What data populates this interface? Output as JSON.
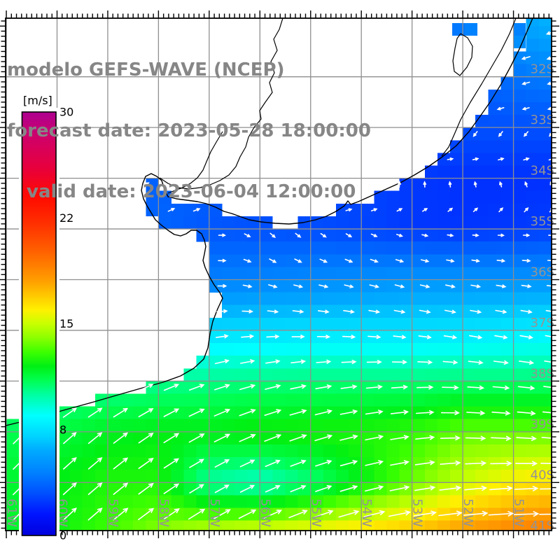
{
  "title": {
    "line1": "modelo GEFS-WAVE (NCEP)",
    "line2": "forecast date: 2023-05-28 18:00:00",
    "line3": "valid date: 2023-06-04 12:00:00",
    "color": "#868686"
  },
  "colorbar": {
    "unit_label": "[m/s]",
    "min": 0,
    "max": 30,
    "ticks": [
      {
        "value": 30,
        "label": "30"
      },
      {
        "value": 22.5,
        "label": "22"
      },
      {
        "value": 15,
        "label": "15"
      },
      {
        "value": 7.5,
        "label": "8"
      },
      {
        "value": 0,
        "label": "0"
      }
    ],
    "stops": [
      [
        0,
        "#0000DC"
      ],
      [
        1.5,
        "#0014FF"
      ],
      [
        3,
        "#0050FF"
      ],
      [
        4.5,
        "#0082FF"
      ],
      [
        6,
        "#00AAFF"
      ],
      [
        7,
        "#00D2FF"
      ],
      [
        8.5,
        "#00FFFF"
      ],
      [
        10,
        "#00FFA0"
      ],
      [
        11,
        "#00FF50"
      ],
      [
        12,
        "#00F014"
      ],
      [
        13,
        "#3CFF00"
      ],
      [
        14,
        "#8CFF00"
      ],
      [
        15,
        "#C8FF00"
      ],
      [
        16,
        "#FFF000"
      ],
      [
        17,
        "#FFC800"
      ],
      [
        18,
        "#FFA000"
      ],
      [
        19,
        "#FF8200"
      ],
      [
        20,
        "#FF6400"
      ],
      [
        22,
        "#FF3200"
      ],
      [
        24,
        "#FF0A00"
      ],
      [
        26,
        "#E8003C"
      ],
      [
        28,
        "#D20064"
      ],
      [
        30,
        "#AE0090"
      ]
    ]
  },
  "axes": {
    "lat_ticklabels": [
      "32S",
      "33S",
      "34S",
      "35S",
      "36S",
      "37S",
      "38S",
      "39S",
      "40S",
      "41S"
    ],
    "lat_values": [
      32,
      33,
      34,
      35,
      36,
      37,
      38,
      39,
      40,
      41
    ],
    "lon_ticklabels": [
      "61W",
      "60W",
      "59W",
      "58W",
      "57W",
      "56W",
      "55W",
      "54W",
      "53W",
      "52W",
      "51W"
    ],
    "lon_values": [
      61,
      60,
      59,
      58,
      57,
      56,
      55,
      54,
      53,
      52,
      51
    ],
    "label_color": "#949494",
    "grid_color": "#8f8f8f",
    "minor_tick_step_deg": 0.1
  },
  "chart_data": {
    "type": "heatmap",
    "title": "GEFS-WAVE (NCEP) wind/wave field, Rio de la Plata region",
    "units": "m/s",
    "legend_position": "left",
    "value_range": [
      0,
      30
    ],
    "lat_south": [
      31,
      32,
      33,
      34,
      35,
      36,
      37,
      38,
      39,
      40,
      41
    ],
    "lon_west": [
      61,
      60,
      59,
      58,
      57,
      56,
      55,
      54,
      53,
      52,
      51,
      50
    ],
    "speed_grid": [
      [
        4,
        4,
        4,
        4,
        4,
        4,
        4,
        4,
        4,
        4,
        5.5,
        6.5
      ],
      [
        4,
        4,
        4,
        4,
        4,
        4,
        4,
        4,
        3.2,
        3.2,
        4,
        4.5
      ],
      [
        3.5,
        3.5,
        3.5,
        3.5,
        3.5,
        3.5,
        3.5,
        3.3,
        3.2,
        3,
        3,
        3
      ],
      [
        3.5,
        3.5,
        3.5,
        3.5,
        3.5,
        3.2,
        3,
        2.8,
        2.4,
        2.2,
        2.2,
        2.2
      ],
      [
        3.8,
        3.8,
        3.8,
        3.6,
        3.2,
        3,
        2.9,
        2.7,
        2.4,
        2.3,
        2.4,
        2.6
      ],
      [
        4.5,
        4.5,
        4.5,
        4.4,
        4.4,
        4.6,
        4.8,
        5,
        5.2,
        5.2,
        5.2,
        5.2
      ],
      [
        7,
        7,
        7,
        7.2,
        7.3,
        7.4,
        7.5,
        7.5,
        7.5,
        7.6,
        7.8,
        8
      ],
      [
        9.5,
        9.8,
        10,
        10.2,
        10.3,
        10.4,
        10.5,
        10.5,
        10.5,
        10.6,
        10.6,
        10.6
      ],
      [
        11,
        11.3,
        11.8,
        12,
        12,
        12.3,
        12.4,
        12.5,
        12.8,
        13.5,
        13.5,
        13.5
      ],
      [
        11.5,
        12,
        12.5,
        12.5,
        10,
        9.5,
        10.5,
        12,
        13.5,
        15,
        16,
        16.5
      ],
      [
        11.5,
        12.2,
        13,
        14,
        15,
        15.5,
        16,
        16.5,
        17.2,
        18.2,
        19,
        19.5
      ]
    ],
    "arrow_dir_deg_math": [
      [
        -160,
        -160,
        -160,
        -160,
        -160,
        -160,
        -160,
        -160,
        -160,
        -160,
        -160,
        -160
      ],
      [
        -165,
        -165,
        -165,
        -165,
        -165,
        -165,
        -165,
        -165,
        -165,
        -165,
        -165,
        -165
      ],
      [
        -170,
        -170,
        -170,
        -170,
        -170,
        -170,
        -170,
        -168,
        -165,
        -162,
        -165,
        -170
      ],
      [
        35,
        35,
        35,
        30,
        25,
        80,
        85,
        95,
        105,
        115,
        125,
        130
      ],
      [
        30,
        30,
        30,
        25,
        15,
        -45,
        -40,
        -30,
        -15,
        -5,
        0,
        0
      ],
      [
        20,
        20,
        18,
        12,
        5,
        -20,
        -15,
        -15,
        -15,
        -12,
        -8,
        -5
      ],
      [
        18,
        18,
        16,
        14,
        8,
        2,
        -2,
        -5,
        -8,
        -10,
        -10,
        -10
      ],
      [
        28,
        26,
        24,
        22,
        18,
        14,
        10,
        6,
        2,
        -3,
        -6,
        -8
      ],
      [
        45,
        42,
        38,
        33,
        28,
        22,
        18,
        12,
        8,
        -2,
        -4,
        -5
      ],
      [
        45,
        43,
        40,
        35,
        30,
        25,
        20,
        15,
        10,
        6,
        3,
        0
      ],
      [
        46,
        44,
        40,
        36,
        31,
        26,
        20,
        15,
        10,
        6,
        3,
        0
      ]
    ],
    "cell_size_deg": 0.25,
    "arrow_spacing_deg": 0.5
  },
  "geography": {
    "coast": [
      [
        8,
        26
      ],
      [
        761,
        26
      ],
      [
        752,
        47
      ],
      [
        742,
        70
      ],
      [
        730,
        94
      ],
      [
        716,
        120
      ],
      [
        700,
        146
      ],
      [
        686,
        166
      ],
      [
        670,
        188
      ],
      [
        652,
        208
      ],
      [
        632,
        224
      ],
      [
        612,
        238
      ],
      [
        592,
        250
      ],
      [
        572,
        261
      ],
      [
        552,
        270
      ],
      [
        532,
        279
      ],
      [
        512,
        288
      ],
      [
        501,
        292
      ],
      [
        497,
        287
      ],
      [
        492,
        294
      ],
      [
        480,
        302
      ],
      [
        466,
        309
      ],
      [
        451,
        314
      ],
      [
        433,
        318
      ],
      [
        413,
        320
      ],
      [
        393,
        319
      ],
      [
        373,
        317
      ],
      [
        356,
        314
      ],
      [
        342,
        309
      ],
      [
        331,
        305
      ],
      [
        320,
        302
      ],
      [
        308,
        296
      ],
      [
        295,
        291
      ],
      [
        282,
        288
      ],
      [
        267,
        286
      ],
      [
        252,
        284
      ],
      [
        240,
        281
      ],
      [
        235,
        270
      ],
      [
        231,
        258
      ],
      [
        224,
        252
      ],
      [
        216,
        248
      ],
      [
        208,
        252
      ],
      [
        204,
        262
      ],
      [
        202,
        272
      ],
      [
        205,
        284
      ],
      [
        210,
        294
      ],
      [
        216,
        304
      ],
      [
        222,
        314
      ],
      [
        231,
        322
      ],
      [
        240,
        329
      ],
      [
        249,
        335
      ],
      [
        258,
        337
      ],
      [
        266,
        334
      ],
      [
        273,
        329
      ],
      [
        281,
        329
      ],
      [
        288,
        334
      ],
      [
        292,
        343
      ],
      [
        294,
        352
      ],
      [
        292,
        363
      ],
      [
        290,
        372
      ],
      [
        293,
        382
      ],
      [
        299,
        395
      ],
      [
        306,
        407
      ],
      [
        314,
        418
      ],
      [
        318,
        426
      ],
      [
        311,
        441
      ],
      [
        304,
        459
      ],
      [
        300,
        477
      ],
      [
        297,
        497
      ],
      [
        291,
        513
      ],
      [
        277,
        526
      ],
      [
        258,
        537
      ],
      [
        233,
        546
      ],
      [
        204,
        554
      ],
      [
        169,
        564
      ],
      [
        131,
        575
      ],
      [
        91,
        586
      ],
      [
        49,
        598
      ],
      [
        0,
        610
      ],
      [
        0,
        26
      ]
    ],
    "rivers": [
      [
        [
          404,
          26
        ],
        [
          399,
          42
        ],
        [
          391,
          56
        ],
        [
          396,
          72
        ],
        [
          387,
          88
        ],
        [
          392,
          104
        ],
        [
          385,
          118
        ],
        [
          389,
          132
        ],
        [
          379,
          146
        ],
        [
          371,
          158
        ],
        [
          373,
          170
        ],
        [
          363,
          182
        ],
        [
          355,
          196
        ],
        [
          351,
          210
        ],
        [
          343,
          224
        ],
        [
          337,
          238
        ],
        [
          327,
          250
        ],
        [
          314,
          258
        ],
        [
          300,
          264
        ],
        [
          286,
          268
        ],
        [
          270,
          270
        ],
        [
          254,
          268
        ],
        [
          240,
          262
        ],
        [
          228,
          254
        ]
      ],
      [
        [
          318,
          188
        ],
        [
          309,
          203
        ],
        [
          301,
          217
        ],
        [
          295,
          231
        ],
        [
          290,
          243
        ],
        [
          282,
          254
        ],
        [
          272,
          262
        ],
        [
          261,
          268
        ],
        [
          250,
          272
        ],
        [
          240,
          276
        ]
      ]
    ],
    "lagoon_lines": [
      [
        [
          737,
          26
        ],
        [
          728,
          48
        ],
        [
          716,
          72
        ],
        [
          702,
          96
        ],
        [
          688,
          120
        ],
        [
          672,
          146
        ],
        [
          658,
          171
        ],
        [
          649,
          192
        ],
        [
          641,
          210
        ],
        [
          631,
          223
        ]
      ],
      [
        [
          658,
          48
        ],
        [
          668,
          54
        ],
        [
          675,
          66
        ],
        [
          674,
          82
        ],
        [
          667,
          96
        ],
        [
          657,
          108
        ],
        [
          649,
          102
        ],
        [
          647,
          87
        ],
        [
          650,
          69
        ],
        [
          653,
          55
        ],
        [
          658,
          48
        ]
      ]
    ],
    "lagoon_cells": [
      [
        646,
        33,
        4.2
      ],
      [
        664,
        33,
        4.5
      ],
      [
        733,
        33,
        4.5
      ],
      [
        733,
        51,
        5
      ]
    ]
  }
}
